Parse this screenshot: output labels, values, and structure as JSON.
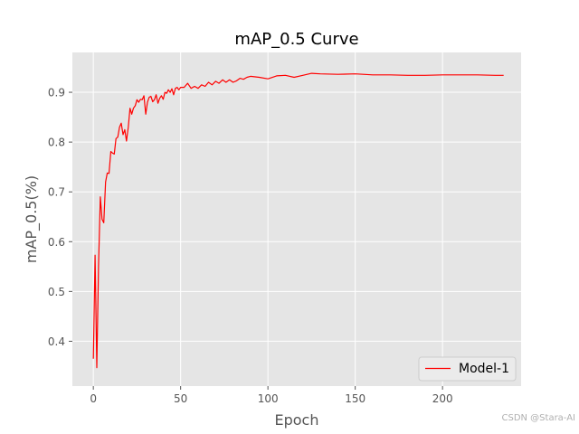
{
  "colors": {
    "plot_background": "#e5e5e5",
    "grid": "#ffffff",
    "tick_text": "#555555",
    "label_text": "#555555",
    "title_text": "#000000",
    "series_line": "#ff0000"
  },
  "watermark": "CSDN @Stara-AI",
  "chart_data": {
    "type": "line",
    "title": "mAP_0.5 Curve",
    "xlabel": "Epoch",
    "ylabel": "mAP_0.5(%)",
    "xlim": [
      -12,
      245
    ],
    "ylim": [
      0.31,
      0.98
    ],
    "xticks": [
      0,
      50,
      100,
      150,
      200
    ],
    "yticks": [
      0.4,
      0.5,
      0.6,
      0.7,
      0.8,
      0.9
    ],
    "grid": true,
    "legend_position": "lower-right",
    "series": [
      {
        "name": "Model-1",
        "color": "#ff0000",
        "x": [
          0,
          1,
          2,
          3,
          4,
          5,
          6,
          7,
          8,
          9,
          10,
          11,
          12,
          13,
          14,
          15,
          16,
          17,
          18,
          19,
          20,
          21,
          22,
          23,
          24,
          25,
          26,
          27,
          28,
          29,
          30,
          31,
          32,
          33,
          34,
          35,
          36,
          37,
          38,
          39,
          40,
          41,
          42,
          43,
          44,
          45,
          46,
          47,
          48,
          49,
          50,
          52,
          54,
          56,
          58,
          60,
          62,
          64,
          66,
          68,
          70,
          72,
          74,
          76,
          78,
          80,
          82,
          84,
          86,
          88,
          90,
          95,
          100,
          105,
          110,
          115,
          120,
          125,
          130,
          140,
          150,
          160,
          170,
          180,
          190,
          200,
          210,
          220,
          230,
          235
        ],
        "y": [
          0.365,
          0.573,
          0.347,
          0.55,
          0.69,
          0.645,
          0.638,
          0.72,
          0.738,
          0.737,
          0.781,
          0.778,
          0.776,
          0.807,
          0.81,
          0.83,
          0.838,
          0.815,
          0.825,
          0.802,
          0.83,
          0.868,
          0.856,
          0.868,
          0.873,
          0.885,
          0.88,
          0.886,
          0.885,
          0.893,
          0.856,
          0.88,
          0.89,
          0.892,
          0.881,
          0.885,
          0.895,
          0.878,
          0.888,
          0.893,
          0.886,
          0.9,
          0.898,
          0.905,
          0.9,
          0.907,
          0.895,
          0.908,
          0.91,
          0.905,
          0.91,
          0.91,
          0.918,
          0.908,
          0.912,
          0.908,
          0.915,
          0.912,
          0.92,
          0.915,
          0.922,
          0.918,
          0.925,
          0.92,
          0.925,
          0.92,
          0.923,
          0.928,
          0.926,
          0.93,
          0.932,
          0.93,
          0.927,
          0.933,
          0.934,
          0.93,
          0.934,
          0.938,
          0.937,
          0.936,
          0.937,
          0.935,
          0.935,
          0.934,
          0.934,
          0.935,
          0.935,
          0.935,
          0.934,
          0.934
        ]
      }
    ]
  }
}
